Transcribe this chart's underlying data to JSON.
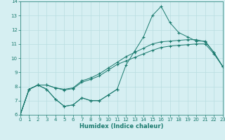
{
  "title": "",
  "xlabel": "Humidex (Indice chaleur)",
  "ylabel": "",
  "background_color": "#d6eff2",
  "grid_color": "#b8dde0",
  "line_color": "#1a7a6e",
  "x_values": [
    0,
    1,
    2,
    3,
    4,
    5,
    6,
    7,
    8,
    9,
    10,
    11,
    12,
    13,
    14,
    15,
    16,
    17,
    18,
    19,
    20,
    21,
    22,
    23
  ],
  "line1": [
    6.0,
    7.8,
    8.1,
    7.8,
    7.1,
    6.6,
    6.7,
    7.2,
    7.0,
    7.0,
    7.4,
    7.8,
    null,
    null,
    null,
    null,
    null,
    null,
    null,
    null,
    null,
    null,
    null,
    null
  ],
  "line2": [
    6.0,
    7.8,
    8.1,
    7.8,
    7.1,
    6.6,
    6.7,
    7.2,
    7.0,
    7.0,
    7.4,
    7.8,
    9.5,
    10.5,
    11.5,
    13.0,
    13.65,
    12.5,
    11.8,
    11.5,
    11.2,
    11.2,
    10.4,
    9.4
  ],
  "line3": [
    6.0,
    7.8,
    8.1,
    8.1,
    7.9,
    7.8,
    7.9,
    8.4,
    8.6,
    8.9,
    9.3,
    9.7,
    10.1,
    10.4,
    10.7,
    11.0,
    11.15,
    11.2,
    11.25,
    11.3,
    11.3,
    11.15,
    10.4,
    9.4
  ],
  "line4": [
    6.0,
    7.8,
    8.1,
    8.1,
    7.9,
    7.75,
    7.85,
    8.3,
    8.5,
    8.75,
    9.15,
    9.55,
    9.8,
    10.05,
    10.3,
    10.55,
    10.75,
    10.85,
    10.9,
    10.95,
    11.0,
    11.0,
    10.3,
    9.4
  ],
  "xlim": [
    0,
    23
  ],
  "ylim": [
    6,
    14
  ],
  "yticks": [
    6,
    7,
    8,
    9,
    10,
    11,
    12,
    13,
    14
  ],
  "xticks": [
    0,
    1,
    2,
    3,
    4,
    5,
    6,
    7,
    8,
    9,
    10,
    11,
    12,
    13,
    14,
    15,
    16,
    17,
    18,
    19,
    20,
    21,
    22,
    23
  ]
}
